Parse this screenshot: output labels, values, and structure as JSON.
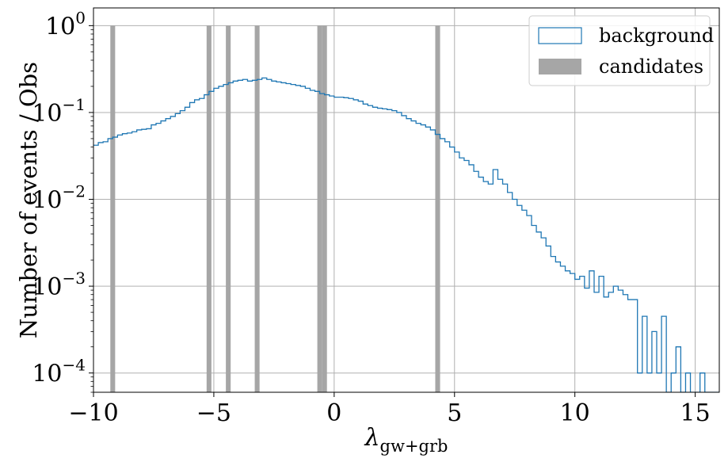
{
  "chart_data": {
    "type": "histogram",
    "title": "",
    "xlabel": "λ",
    "xlabel_subscript": "gw+grb",
    "ylabel": "Number of events / Obs",
    "xlim": [
      -10,
      16
    ],
    "ylim": [
      6e-05,
      1.6
    ],
    "yscale": "log",
    "grid": true,
    "legend_position": "top-right",
    "x_ticks": [
      -10,
      -5,
      0,
      5,
      10,
      15
    ],
    "x_tick_labels": [
      "−10",
      "−5",
      "0",
      "5",
      "10",
      "15"
    ],
    "y_ticks": [
      {
        "value": 1,
        "base": "10",
        "exp": "0"
      },
      {
        "value": 0.1,
        "base": "10",
        "exp": "−1"
      },
      {
        "value": 0.01,
        "base": "10",
        "exp": "−2"
      },
      {
        "value": 0.001,
        "base": "10",
        "exp": "−3"
      },
      {
        "value": 0.0001,
        "base": "10",
        "exp": "−4"
      }
    ],
    "series": [
      {
        "name": "background",
        "kind": "step",
        "color": "#1f77b4",
        "bin_width": 0.2,
        "bin_start": -10,
        "values": [
          0.042,
          0.045,
          0.046,
          0.05,
          0.052,
          0.055,
          0.057,
          0.058,
          0.06,
          0.063,
          0.064,
          0.065,
          0.072,
          0.075,
          0.08,
          0.085,
          0.09,
          0.097,
          0.105,
          0.115,
          0.13,
          0.14,
          0.145,
          0.16,
          0.175,
          0.19,
          0.2,
          0.21,
          0.22,
          0.23,
          0.235,
          0.24,
          0.23,
          0.235,
          0.24,
          0.25,
          0.24,
          0.23,
          0.225,
          0.22,
          0.215,
          0.21,
          0.205,
          0.2,
          0.19,
          0.18,
          0.175,
          0.165,
          0.16,
          0.155,
          0.15,
          0.15,
          0.148,
          0.145,
          0.14,
          0.135,
          0.125,
          0.12,
          0.115,
          0.112,
          0.11,
          0.108,
          0.105,
          0.1,
          0.092,
          0.085,
          0.08,
          0.075,
          0.072,
          0.068,
          0.063,
          0.056,
          0.05,
          0.046,
          0.04,
          0.035,
          0.03,
          0.028,
          0.025,
          0.021,
          0.018,
          0.016,
          0.015,
          0.022,
          0.017,
          0.015,
          0.012,
          0.01,
          0.0085,
          0.0075,
          0.0065,
          0.005,
          0.0042,
          0.0036,
          0.0029,
          0.0022,
          0.0019,
          0.0017,
          0.0015,
          0.0014,
          0.0012,
          0.0013,
          0.00095,
          0.0015,
          0.00085,
          0.0013,
          0.00075,
          0.00085,
          0.001,
          0.0009,
          0.0008,
          0.0007,
          0.0007,
          0.0001,
          0.00045,
          0.0001,
          0.0003,
          0.0001,
          0.00045,
          6e-05,
          0.0001,
          0.0002,
          6e-05,
          0.0001,
          6e-05,
          6e-05,
          0.0001,
          6e-05,
          6e-05,
          6e-05,
          6e-05,
          6e-05,
          6e-05,
          6e-05,
          6e-05,
          6e-05,
          6e-05,
          6e-05,
          6e-05,
          6e-05,
          6e-05
        ]
      },
      {
        "name": "candidates",
        "kind": "bars",
        "color": "#a6a6a6",
        "bars": [
          {
            "x0": -9.3,
            "x1": -9.1,
            "value": 1
          },
          {
            "x0": -5.3,
            "x1": -5.1,
            "value": 1
          },
          {
            "x0": -4.5,
            "x1": -4.3,
            "value": 1
          },
          {
            "x0": -3.3,
            "x1": -3.1,
            "value": 1
          },
          {
            "x0": -0.7,
            "x1": -0.5,
            "value": 1
          },
          {
            "x0": -0.5,
            "x1": -0.3,
            "value": 1
          },
          {
            "x0": 4.2,
            "x1": 4.4,
            "value": 1
          }
        ]
      }
    ]
  }
}
